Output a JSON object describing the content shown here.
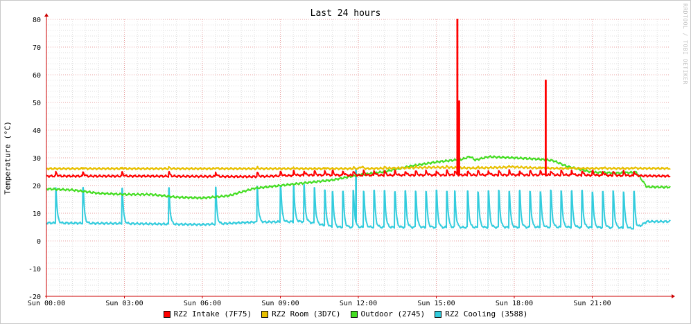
{
  "chart_data": {
    "type": "line",
    "title": "Last 24 hours",
    "ylabel": "Temperature (°C)",
    "watermark": "RRDTOOL / TOBI OETIKER",
    "ylim": [
      -20,
      80
    ],
    "y_ticks": [
      -20,
      -10,
      0,
      10,
      20,
      30,
      40,
      50,
      60,
      70,
      80
    ],
    "x_range_hours": [
      0,
      24
    ],
    "x_ticks": [
      {
        "hour": 0,
        "label": "Sun 00:00"
      },
      {
        "hour": 3,
        "label": "Sun 03:00"
      },
      {
        "hour": 6,
        "label": "Sun 06:00"
      },
      {
        "hour": 9,
        "label": "Sun 09:00"
      },
      {
        "hour": 12,
        "label": "Sun 12:00"
      },
      {
        "hour": 15,
        "label": "Sun 15:00"
      },
      {
        "hour": 18,
        "label": "Sun 18:00"
      },
      {
        "hour": 21,
        "label": "Sun 21:00"
      }
    ],
    "grid": true,
    "legend_position": "bottom",
    "series": [
      {
        "name": "RZ2 Intake (7F75)",
        "color": "#ff0000",
        "base": [
          [
            0,
            23.4
          ],
          [
            4,
            23.4
          ],
          [
            8,
            23.2
          ],
          [
            10,
            23.8
          ],
          [
            12,
            23.7
          ],
          [
            16,
            23.8
          ],
          [
            20,
            23.8
          ],
          [
            24,
            23.4
          ]
        ],
        "pulse_height": 1.5,
        "pulses": [
          0.35,
          1.4,
          2.9,
          4.7,
          6.5,
          8.1,
          9.0,
          9.5,
          9.9,
          10.3,
          10.7,
          11.0,
          11.4,
          11.8,
          12.2,
          12.6,
          13.0,
          13.4,
          13.8,
          14.2,
          14.6,
          15.0,
          15.4,
          15.7,
          16.2,
          16.6,
          17.0,
          17.4,
          17.8,
          18.2,
          18.6,
          19.0,
          19.4,
          19.8,
          20.2,
          20.6,
          21.0,
          21.4,
          21.8,
          22.2,
          22.6
        ],
        "spikes": [
          {
            "hour": 15.8,
            "value": 80
          },
          {
            "hour": 15.87,
            "value": 50.5
          },
          {
            "hour": 19.2,
            "value": 58
          }
        ]
      },
      {
        "name": "RZ2 Room (3D7C)",
        "color": "#e8c000",
        "base": [
          [
            0,
            26.1
          ],
          [
            12,
            26.1
          ],
          [
            12.1,
            26.8
          ],
          [
            12.3,
            26.1
          ],
          [
            15,
            26.6
          ],
          [
            16.5,
            26.3
          ],
          [
            18,
            26.7
          ],
          [
            19,
            26.3
          ],
          [
            20,
            26.2
          ],
          [
            24,
            26.2
          ]
        ],
        "pulse_height": 0.4,
        "pulses": [
          1.4,
          2.9,
          4.7,
          6.5,
          8.1,
          9.5,
          10.7,
          11.8,
          13.0,
          14.2,
          15.4,
          16.6,
          17.8,
          19.0,
          20.2,
          21.4,
          22.6
        ]
      },
      {
        "name": "Outdoor (2745)",
        "color": "#44dd22",
        "base": [
          [
            0,
            18.8
          ],
          [
            1,
            18.4
          ],
          [
            2,
            17.2
          ],
          [
            3,
            16.8
          ],
          [
            4,
            16.8
          ],
          [
            5,
            15.8
          ],
          [
            6,
            15.5
          ],
          [
            7,
            16.3
          ],
          [
            8,
            19.0
          ],
          [
            9,
            20.0
          ],
          [
            10,
            21.0
          ],
          [
            11,
            22.0
          ],
          [
            12,
            23.8
          ],
          [
            13,
            25.0
          ],
          [
            14,
            27.0
          ],
          [
            15,
            28.5
          ],
          [
            16,
            29.5
          ],
          [
            16.3,
            30.5
          ],
          [
            16.5,
            29.2
          ],
          [
            17,
            30.4
          ],
          [
            18,
            30.0
          ],
          [
            19,
            29.5
          ],
          [
            19.5,
            29.0
          ],
          [
            20,
            27.0
          ],
          [
            21,
            24.8
          ],
          [
            22,
            24.5
          ],
          [
            22.7,
            24.8
          ],
          [
            23.1,
            19.5
          ],
          [
            24,
            19.4
          ]
        ],
        "pulse_height": 0,
        "pulses": []
      },
      {
        "name": "RZ2 Cooling (3588)",
        "color": "#33ccdd",
        "base": [
          [
            0,
            6.5
          ],
          [
            3,
            6.3
          ],
          [
            6,
            5.9
          ],
          [
            8,
            6.8
          ],
          [
            9,
            6.9
          ],
          [
            10,
            7.0
          ],
          [
            11,
            5.0
          ],
          [
            12,
            5.0
          ],
          [
            16,
            4.9
          ],
          [
            20,
            5.0
          ],
          [
            22,
            4.8
          ],
          [
            22.7,
            4.5
          ],
          [
            23.1,
            7.0
          ],
          [
            24,
            7.0
          ]
        ],
        "pulse_height": 13,
        "pulses": [
          0.35,
          1.4,
          2.9,
          4.7,
          6.5,
          8.1,
          9.0,
          9.5,
          9.9,
          10.3,
          10.7,
          11.0,
          11.4,
          11.8,
          12.2,
          12.6,
          13.0,
          13.4,
          13.8,
          14.2,
          14.6,
          15.0,
          15.4,
          15.7,
          16.2,
          16.6,
          17.0,
          17.4,
          17.8,
          18.2,
          18.6,
          19.0,
          19.4,
          19.8,
          20.2,
          20.6,
          21.0,
          21.4,
          21.8,
          22.2,
          22.6
        ],
        "spikes": [
          {
            "hour": 11.9,
            "value": 26
          }
        ]
      }
    ]
  }
}
